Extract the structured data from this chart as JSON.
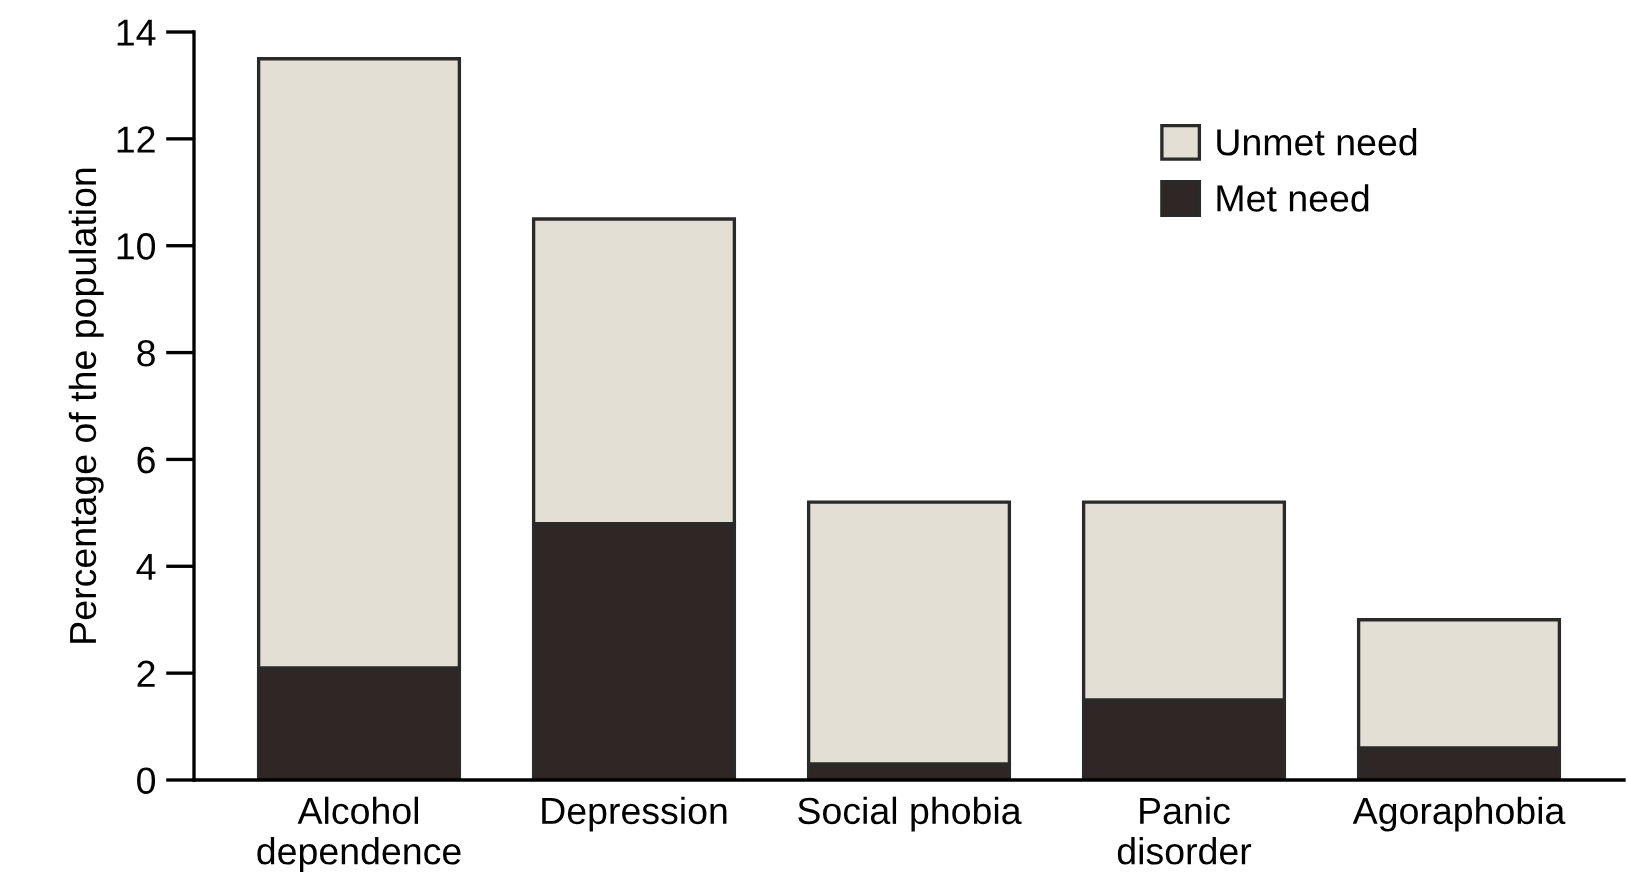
{
  "chart_data": {
    "type": "bar",
    "stacked": true,
    "ylabel": "Percentage of the population",
    "categories": [
      "Alcohol\ndependence",
      "Depression",
      "Social phobia",
      "Panic\ndisorder",
      "Agoraphobia"
    ],
    "series": [
      {
        "name": "Met need",
        "color": "#2e2725",
        "values": [
          2.1,
          4.8,
          0.3,
          1.5,
          0.6
        ]
      },
      {
        "name": "Unmet need",
        "color": "#e3dfd5",
        "values": [
          11.4,
          5.7,
          4.9,
          3.7,
          2.4
        ]
      }
    ],
    "ylim": [
      0,
      14
    ],
    "yticks": [
      0,
      2,
      4,
      6,
      8,
      10,
      12,
      14
    ],
    "grid": false,
    "legend": "top right"
  }
}
